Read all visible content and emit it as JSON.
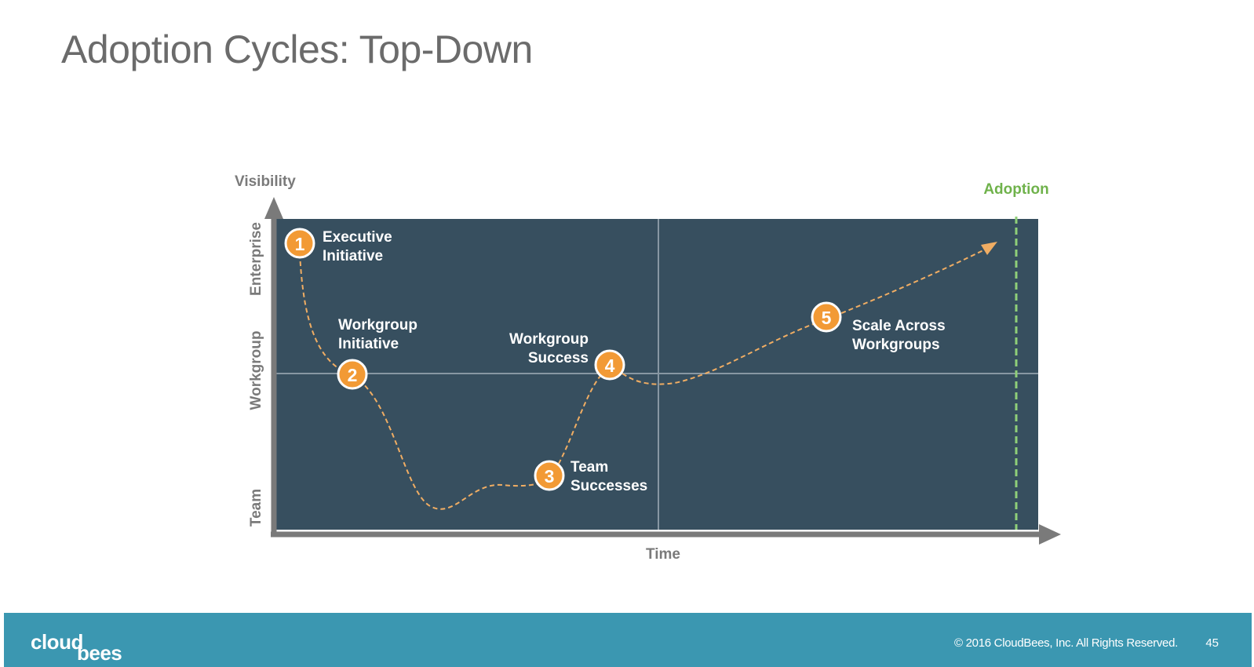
{
  "slide": {
    "title": "Adoption Cycles: Top-Down",
    "page_number": "45"
  },
  "diagram": {
    "y_axis_title": "Visibility",
    "x_axis_title": "Time",
    "y_levels": [
      "Enterprise",
      "Workgroup",
      "Team"
    ],
    "adoption_label": "Adoption",
    "steps": [
      {
        "number": "1",
        "line1": "Executive",
        "line2": "Initiative"
      },
      {
        "number": "2",
        "line1": "Workgroup",
        "line2": "Initiative"
      },
      {
        "number": "3",
        "line1": "Team",
        "line2": "Successes"
      },
      {
        "number": "4",
        "line1": "Workgroup",
        "line2": "Success"
      },
      {
        "number": "5",
        "line1": "Scale Across",
        "line2": "Workgroups"
      }
    ]
  },
  "footer": {
    "logo_part1": "cloud",
    "logo_part2": "bees",
    "copyright": "© 2016 CloudBees, Inc. All Rights Reserved."
  },
  "colors": {
    "panel": "#374f5f",
    "accent_orange": "#f29a35",
    "adoption_green": "#6fb24b",
    "axis_gray": "#7a7a7a",
    "footer_blue": "#3b97b1"
  }
}
